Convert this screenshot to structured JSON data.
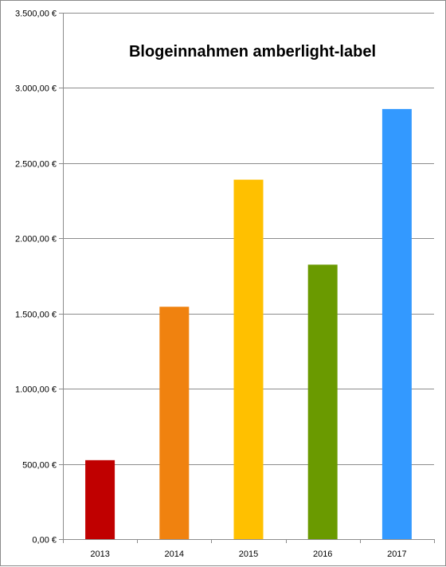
{
  "chart_data": {
    "type": "bar",
    "title": "Blogeinnahmen amberlight-label",
    "xlabel": "",
    "ylabel": "",
    "categories": [
      "2013",
      "2014",
      "2015",
      "2016",
      "2017"
    ],
    "values": [
      525,
      1545,
      2390,
      1825,
      2860
    ],
    "bar_colors": [
      "#C00000",
      "#F0820F",
      "#FFC000",
      "#6A9A00",
      "#3399FF"
    ],
    "ylim": [
      0,
      3500
    ],
    "yticks": [
      0,
      500,
      1000,
      1500,
      2000,
      2500,
      3000,
      3500
    ],
    "ytick_labels": [
      "0,00 €",
      "500,00 €",
      "1.000,00 €",
      "1.500,00 €",
      "2.000,00 €",
      "2.500,00 €",
      "3.000,00 €",
      "3.500,00 €"
    ],
    "grid": true,
    "legend": false
  }
}
